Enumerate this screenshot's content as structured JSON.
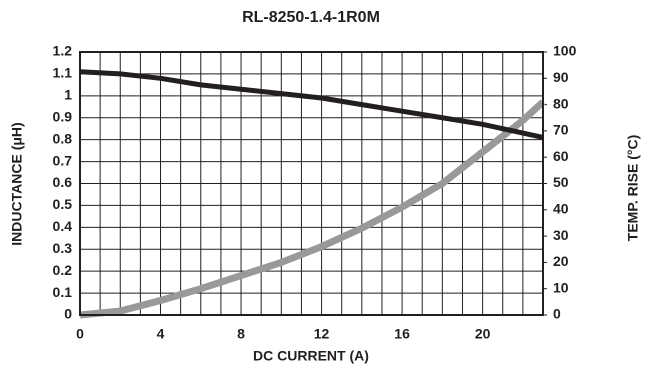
{
  "chart_data": {
    "type": "line",
    "title": "RL-8250-1.4-1R0M",
    "x_label": "DC CURRENT (A)",
    "y_label": "INDUCTANCE (μH)",
    "y2_label": "TEMP. RISE (°C)",
    "x": [
      0,
      2,
      4,
      6,
      8,
      10,
      12,
      14,
      16,
      18,
      20,
      22,
      23
    ],
    "series": [
      {
        "name": "Inductance",
        "color": "#231f20",
        "values": [
          1.11,
          1.1,
          1.08,
          1.05,
          1.03,
          1.01,
          0.99,
          0.96,
          0.93,
          0.9,
          0.87,
          0.83,
          0.81
        ]
      },
      {
        "name": "Temp. Rise",
        "color": "#999999",
        "axis": "y2",
        "values": [
          0,
          1.5,
          5.5,
          10,
          15,
          20,
          26,
          33,
          41,
          50,
          62,
          74,
          81
        ]
      }
    ],
    "xlim": [
      0,
      23
    ],
    "xticks": [
      0,
      4,
      8,
      12,
      16,
      20
    ],
    "x_minor_ticks": [
      1,
      2,
      3,
      5,
      6,
      7,
      9,
      10,
      11,
      13,
      14,
      15,
      17,
      18,
      19,
      21,
      22
    ],
    "ylim": [
      0,
      1.2
    ],
    "yticks": [
      0,
      0.1,
      0.2,
      0.3,
      0.4,
      0.5,
      0.6,
      0.7,
      0.8,
      0.9,
      1,
      1.1,
      1.2
    ],
    "y2lim": [
      0,
      100
    ],
    "y2ticks": [
      0,
      10,
      20,
      30,
      40,
      50,
      60,
      70,
      80,
      90,
      100
    ],
    "grid": true
  }
}
